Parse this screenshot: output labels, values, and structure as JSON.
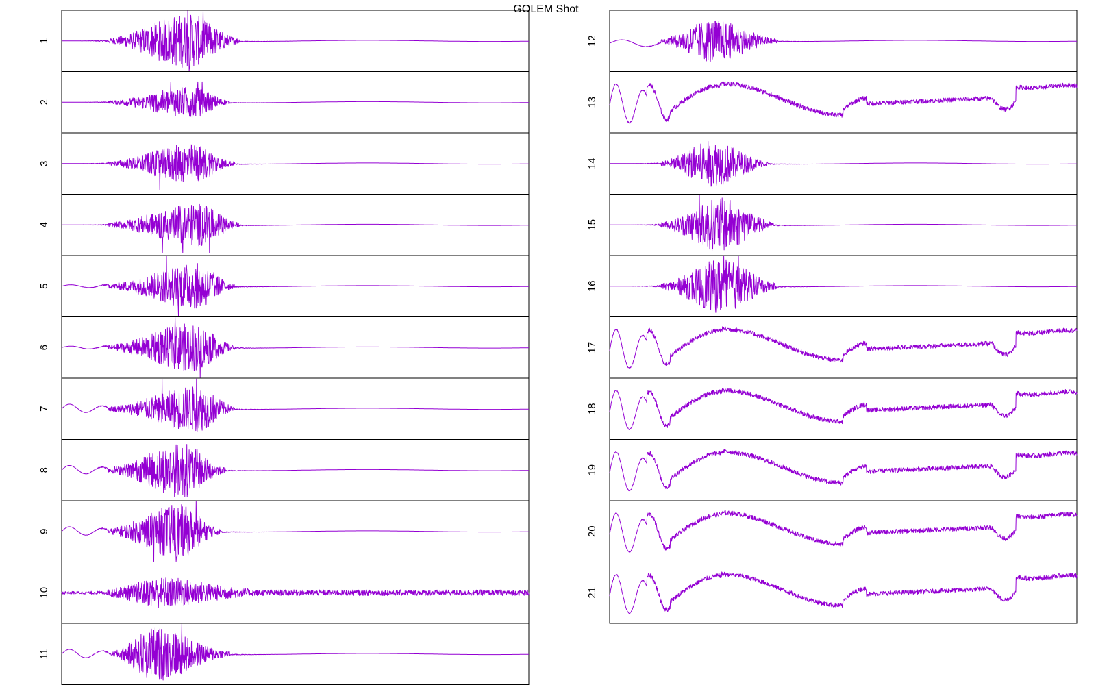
{
  "chart_data": {
    "type": "line",
    "title": "GOLEM Shot",
    "layout": "two columns of stacked panels, shared x range, no axis ticks",
    "grid": false,
    "x_range": [
      0,
      1
    ],
    "series_color": "#9400d3",
    "panels": [
      {
        "label": "1",
        "kind": "burst",
        "burst_start": 0.1,
        "burst_center": 0.27,
        "burst_end": 0.38,
        "amp": 0.95,
        "pre": "flat"
      },
      {
        "label": "2",
        "kind": "burst",
        "burst_start": 0.1,
        "burst_center": 0.28,
        "burst_end": 0.36,
        "amp": 0.55,
        "pre": "flat"
      },
      {
        "label": "3",
        "kind": "burst",
        "burst_start": 0.1,
        "burst_center": 0.28,
        "burst_end": 0.37,
        "amp": 0.7,
        "pre": "flat"
      },
      {
        "label": "4",
        "kind": "burst",
        "burst_start": 0.1,
        "burst_center": 0.29,
        "burst_end": 0.38,
        "amp": 0.75,
        "pre": "flat"
      },
      {
        "label": "5",
        "kind": "burst",
        "burst_start": 0.1,
        "burst_center": 0.29,
        "burst_end": 0.37,
        "amp": 0.8,
        "pre": "small-ripple"
      },
      {
        "label": "6",
        "kind": "burst",
        "burst_start": 0.1,
        "burst_center": 0.28,
        "burst_end": 0.37,
        "amp": 0.85,
        "pre": "small-ripple"
      },
      {
        "label": "7",
        "kind": "burst",
        "burst_start": 0.1,
        "burst_center": 0.29,
        "burst_end": 0.37,
        "amp": 0.8,
        "pre": "ripple"
      },
      {
        "label": "8",
        "kind": "burst",
        "burst_start": 0.1,
        "burst_center": 0.26,
        "burst_end": 0.35,
        "amp": 0.95,
        "pre": "ripple"
      },
      {
        "label": "9",
        "kind": "burst",
        "burst_start": 0.1,
        "burst_center": 0.25,
        "burst_end": 0.34,
        "amp": 0.95,
        "pre": "ripple"
      },
      {
        "label": "10",
        "kind": "noise",
        "burst_start": 0.1,
        "burst_center": 0.22,
        "burst_end": 0.4,
        "amp": 0.45,
        "pre": "small-ripple"
      },
      {
        "label": "11",
        "kind": "burst",
        "burst_start": 0.11,
        "burst_center": 0.2,
        "burst_end": 0.36,
        "amp": 0.95,
        "pre": "ripple"
      },
      {
        "label": "12",
        "kind": "burst",
        "burst_start": 0.11,
        "burst_center": 0.22,
        "burst_end": 0.36,
        "amp": 0.75,
        "pre": "dip"
      },
      {
        "label": "13",
        "kind": "wave"
      },
      {
        "label": "14",
        "kind": "burst",
        "burst_start": 0.11,
        "burst_center": 0.22,
        "burst_end": 0.34,
        "amp": 0.8,
        "pre": "flat"
      },
      {
        "label": "15",
        "kind": "burst",
        "burst_start": 0.11,
        "burst_center": 0.24,
        "burst_end": 0.35,
        "amp": 0.95,
        "pre": "flat"
      },
      {
        "label": "16",
        "kind": "burst",
        "burst_start": 0.11,
        "burst_center": 0.24,
        "burst_end": 0.36,
        "amp": 0.95,
        "pre": "flat"
      },
      {
        "label": "17",
        "kind": "wave"
      },
      {
        "label": "18",
        "kind": "wave"
      },
      {
        "label": "19",
        "kind": "wave"
      },
      {
        "label": "20",
        "kind": "wave"
      },
      {
        "label": "21",
        "kind": "wave"
      }
    ]
  }
}
